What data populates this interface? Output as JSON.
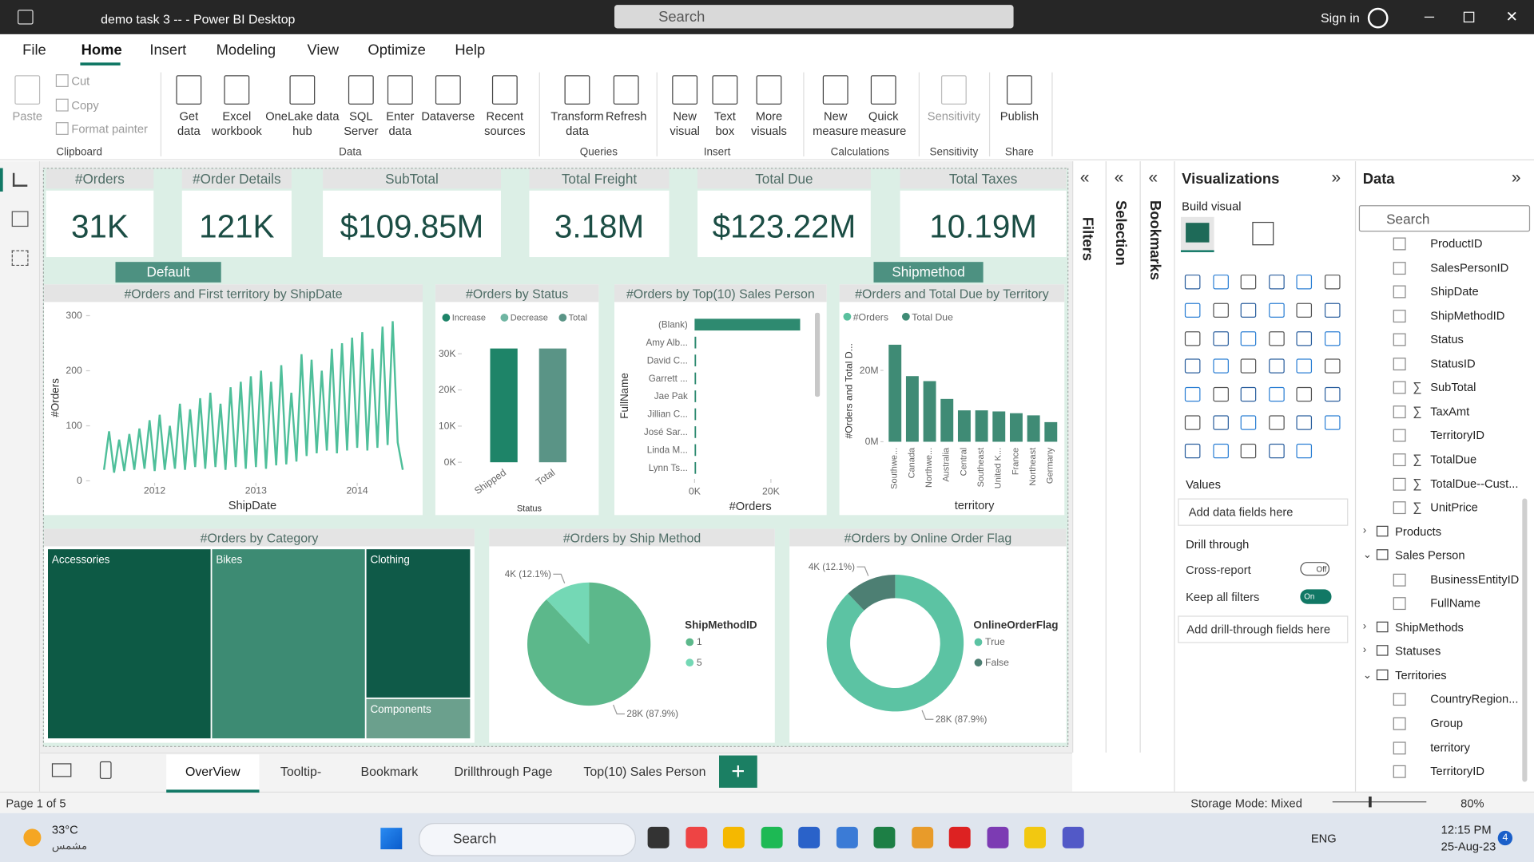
{
  "window": {
    "title": "demo task 3 -- - Power BI Desktop",
    "search": "Search",
    "sign_in": "Sign in"
  },
  "menu": [
    "File",
    "Home",
    "Insert",
    "Modeling",
    "View",
    "Optimize",
    "Help"
  ],
  "ribbon": {
    "buttons": [
      "Paste",
      "Cut",
      "Copy",
      "Format painter",
      "Get data",
      "Excel workbook",
      "OneLake data hub",
      "SQL Server",
      "Enter data",
      "Dataverse",
      "Recent sources",
      "Transform data",
      "Refresh",
      "New visual",
      "Text box",
      "More visuals",
      "New measure",
      "Quick measure",
      "Sensitivity",
      "Publish"
    ],
    "groups": [
      "Clipboard",
      "Data",
      "Queries",
      "Insert",
      "Calculations",
      "Sensitivity",
      "Share"
    ]
  },
  "report": {
    "cards": [
      {
        "title": "#Orders",
        "value": "31K"
      },
      {
        "title": "#Order Details",
        "value": "121K"
      },
      {
        "title": "SubTotal",
        "value": "$109.85M"
      },
      {
        "title": "Total Freight",
        "value": "3.18M"
      },
      {
        "title": "Total Due",
        "value": "$123.22M"
      },
      {
        "title": "Total Taxes",
        "value": "10.19M"
      }
    ],
    "buttons": [
      "Default",
      "Shipmethod"
    ]
  },
  "chart_data": [
    {
      "type": "line",
      "title": "#Orders and First territory by ShipDate",
      "x_label": "ShipDate",
      "y_label": "#Orders",
      "color": "#4fbf9a",
      "x": [
        2011.5,
        2011.55,
        2011.6,
        2011.65,
        2011.7,
        2011.75,
        2011.8,
        2011.85,
        2011.9,
        2011.95,
        2012,
        2012.05,
        2012.1,
        2012.15,
        2012.2,
        2012.25,
        2012.3,
        2012.35,
        2012.4,
        2012.45,
        2012.5,
        2012.55,
        2012.6,
        2012.65,
        2012.7,
        2012.75,
        2012.8,
        2012.85,
        2012.9,
        2012.95,
        2013,
        2013.05,
        2013.1,
        2013.15,
        2013.2,
        2013.25,
        2013.3,
        2013.35,
        2013.4,
        2013.45,
        2013.5,
        2013.55,
        2013.6,
        2013.65,
        2013.7,
        2013.75,
        2013.8,
        2013.85,
        2013.9,
        2013.95,
        2014,
        2014.05,
        2014.1,
        2014.15,
        2014.2,
        2014.25,
        2014.3,
        2014.35,
        2014.4,
        2014.45
      ],
      "values": [
        20,
        90,
        15,
        75,
        18,
        85,
        20,
        95,
        22,
        110,
        18,
        120,
        20,
        100,
        22,
        140,
        20,
        130,
        25,
        150,
        22,
        160,
        25,
        140,
        20,
        170,
        25,
        180,
        22,
        190,
        25,
        200,
        22,
        180,
        28,
        210,
        30,
        160,
        35,
        230,
        45,
        220,
        50,
        200,
        55,
        240,
        50,
        250,
        55,
        260,
        60,
        270,
        55,
        240,
        60,
        280,
        65,
        290,
        70,
        20
      ],
      "xlim": [
        2011.42,
        2014.53
      ],
      "xticks": [
        2012,
        2013,
        2014
      ],
      "ylim": [
        0,
        300
      ],
      "yticks": [
        0,
        100,
        200,
        300
      ]
    },
    {
      "type": "waterfall",
      "title": "#Orders by Status",
      "x_label": "Status",
      "legend": [
        {
          "name": "Increase",
          "color": "#1e8468"
        },
        {
          "name": "Decrease",
          "color": "#6fb5a2"
        },
        {
          "name": "Total",
          "color": "#5a9486"
        }
      ],
      "categories": [
        "Shipped",
        "Total"
      ],
      "values": [
        31465,
        31465
      ],
      "ylim": [
        0,
        35000
      ],
      "yticks": [
        {
          "value": 0,
          "label": "0K"
        },
        {
          "value": 10000,
          "label": "10K"
        },
        {
          "value": 20000,
          "label": "20K"
        },
        {
          "value": 30000,
          "label": "30K"
        }
      ]
    },
    {
      "type": "hbar",
      "title": "#Orders by Top(10) Sales Person",
      "x_label": "#Orders",
      "y_label": "FullName",
      "color": "#2e8a70",
      "categories": [
        "(Blank)",
        "Amy Alb...",
        "David C...",
        "Garrett ...",
        "Jae Pak",
        "Jillian C...",
        "José Sar...",
        "Linda M...",
        "Lynn Ts..."
      ],
      "values": [
        27659,
        416,
        356,
        311,
        303,
        296,
        284,
        268,
        234
      ],
      "xlim": [
        0,
        30000
      ],
      "xticks": [
        {
          "value": 0,
          "label": "0K"
        },
        {
          "value": 20000,
          "label": "20K"
        }
      ]
    },
    {
      "type": "bar",
      "title": "#Orders and Total Due by Territory",
      "x_label": "territory",
      "y_label": "#Orders and Total D...",
      "categories": [
        "Southwe...",
        "Canada",
        "Northwe...",
        "Australia",
        "Central",
        "Southeast",
        "United K...",
        "France",
        "Northeast",
        "Germany"
      ],
      "series": [
        {
          "name": "#Orders",
          "color": "#5ac09e",
          "values": [
            6224,
            4067,
            4594,
            6843,
            385,
            486,
            3219,
            2672,
            352,
            2623
          ]
        },
        {
          "name": "Total Due",
          "color": "#3f8b75",
          "values": [
            27200000,
            18400000,
            17000000,
            12000000,
            8800000,
            8800000,
            8500000,
            8000000,
            7400000,
            5500000
          ]
        }
      ],
      "ylim": [
        0,
        30000000
      ],
      "yticks": [
        {
          "value": 0,
          "label": "0M"
        },
        {
          "value": 20000000,
          "label": "20M"
        }
      ]
    },
    {
      "type": "treemap",
      "title": "#Orders by Category",
      "categories": [
        "Accessories",
        "Bikes",
        "Clothing",
        "Components"
      ],
      "values": [
        32732,
        30772,
        16478,
        4494
      ],
      "colors": [
        "#0d5a45",
        "#3d8b73",
        "#0f5a48",
        "#6ba08d"
      ]
    },
    {
      "type": "pie",
      "title": "#Orders by Ship Method",
      "legend_title": "ShipMethodID",
      "categories": [
        "1",
        "5"
      ],
      "values": [
        87.9,
        12.1
      ],
      "value_labels": [
        "28K (87.9%)",
        "4K (12.1%)"
      ],
      "colors": [
        "#5cb88b",
        "#74d8b5"
      ]
    },
    {
      "type": "donut",
      "title": "#Orders by Online Order Flag",
      "legend_title": "OnlineOrderFlag",
      "categories": [
        "True",
        "False"
      ],
      "values": [
        87.9,
        12.1
      ],
      "value_labels": [
        "28K (87.9%)",
        "4K (12.1%)"
      ],
      "colors": [
        "#5cc3a3",
        "#4d7f73"
      ]
    }
  ],
  "panes": {
    "filters": "Filters",
    "selection": "Selection",
    "bookmarks": "Bookmarks",
    "visualizations": {
      "title": "Visualizations",
      "build": "Build visual",
      "values": "Values",
      "values_hint": "Add data fields here",
      "drill": "Drill through",
      "cross_report": {
        "label": "Cross-report",
        "state": "Off"
      },
      "keep_filters": {
        "label": "Keep all filters",
        "state": "On"
      },
      "drill_hint": "Add drill-through fields here"
    },
    "data": {
      "title": "Data",
      "search": "Search",
      "items": [
        {
          "label": "ProductID",
          "kind": "field"
        },
        {
          "label": "SalesPersonID",
          "kind": "field"
        },
        {
          "label": "ShipDate",
          "kind": "field"
        },
        {
          "label": "ShipMethodID",
          "kind": "field"
        },
        {
          "label": "Status",
          "kind": "field"
        },
        {
          "label": "StatusID",
          "kind": "field"
        },
        {
          "label": "SubTotal",
          "kind": "measure"
        },
        {
          "label": "TaxAmt",
          "kind": "measure"
        },
        {
          "label": "TerritoryID",
          "kind": "field"
        },
        {
          "label": "TotalDue",
          "kind": "measure"
        },
        {
          "label": "TotalDue--Cust...",
          "kind": "measure"
        },
        {
          "label": "UnitPrice",
          "kind": "measure"
        },
        {
          "label": "Products",
          "kind": "table",
          "expanded": false
        },
        {
          "label": "Sales Person",
          "kind": "table",
          "expanded": true
        },
        {
          "label": "BusinessEntityID",
          "kind": "field"
        },
        {
          "label": "FullName",
          "kind": "field"
        },
        {
          "label": "ShipMethods",
          "kind": "table",
          "expanded": false
        },
        {
          "label": "Statuses",
          "kind": "table",
          "expanded": false
        },
        {
          "label": "Territories",
          "kind": "table",
          "expanded": true
        },
        {
          "label": "CountryRegion...",
          "kind": "field"
        },
        {
          "label": "Group",
          "kind": "field"
        },
        {
          "label": "territory",
          "kind": "field"
        },
        {
          "label": "TerritoryID",
          "kind": "field"
        }
      ]
    }
  },
  "pages": [
    "OverView",
    "Tooltip-",
    "Bookmark",
    "Drillthrough Page",
    "Top(10) Sales Person"
  ],
  "status": {
    "page": "Page 1 of 5",
    "storage": "Storage Mode: Mixed",
    "zoom": "80%"
  },
  "taskbar": {
    "temp": "33°C",
    "weather": "مشمس",
    "search": "Search",
    "lang": "ENG",
    "time": "12:15 PM",
    "date": "25-Aug-23",
    "badge": "4"
  }
}
